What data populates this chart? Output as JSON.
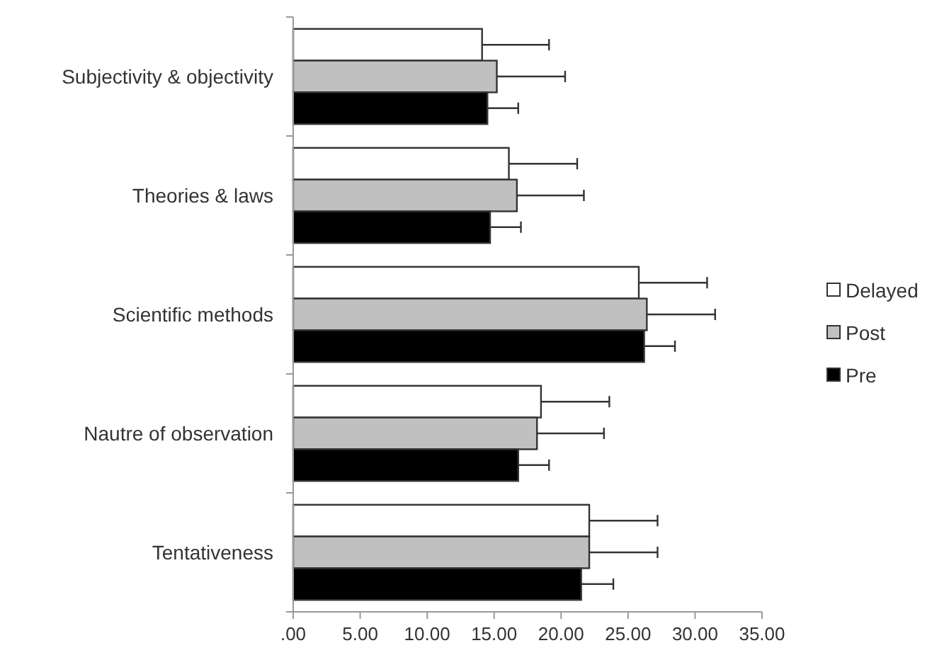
{
  "chart_data": {
    "type": "bar",
    "orientation": "horizontal",
    "categories": [
      "Subjectivity & objectivity",
      "Theories & laws",
      "Scientific methods",
      "Nautre of observation",
      "Tentativeness"
    ],
    "series": [
      {
        "name": "Delayed",
        "color": "#ffffff",
        "values": [
          14.1,
          16.1,
          25.8,
          18.5,
          22.1
        ],
        "errors": [
          [
            14.1,
            19.1
          ],
          [
            16.1,
            21.2
          ],
          [
            25.8,
            30.9
          ],
          [
            18.5,
            23.6
          ],
          [
            22.1,
            27.2
          ]
        ]
      },
      {
        "name": "Post",
        "color": "#c0c0c0",
        "values": [
          15.2,
          16.7,
          26.4,
          18.2,
          22.1
        ],
        "errors": [
          [
            15.2,
            20.3
          ],
          [
            16.7,
            21.7
          ],
          [
            26.4,
            31.5
          ],
          [
            18.2,
            23.2
          ],
          [
            22.1,
            27.2
          ]
        ]
      },
      {
        "name": "Pre",
        "color": "#000000",
        "values": [
          14.5,
          14.7,
          26.2,
          16.8,
          21.5
        ],
        "errors": [
          [
            14.5,
            16.8
          ],
          [
            14.7,
            17.0
          ],
          [
            26.2,
            28.5
          ],
          [
            16.8,
            19.1
          ],
          [
            21.5,
            23.9
          ]
        ]
      }
    ],
    "xlim": [
      0,
      35
    ],
    "xticks": [
      {
        "value": 0,
        "label": ".00"
      },
      {
        "value": 5,
        "label": "5.00"
      },
      {
        "value": 10,
        "label": "10.00"
      },
      {
        "value": 15,
        "label": "15.00"
      },
      {
        "value": 20,
        "label": "20.00"
      },
      {
        "value": 25,
        "label": "25.00"
      },
      {
        "value": 30,
        "label": "30.00"
      },
      {
        "value": 35,
        "label": "35.00"
      }
    ],
    "grid": false,
    "legend": "right"
  }
}
